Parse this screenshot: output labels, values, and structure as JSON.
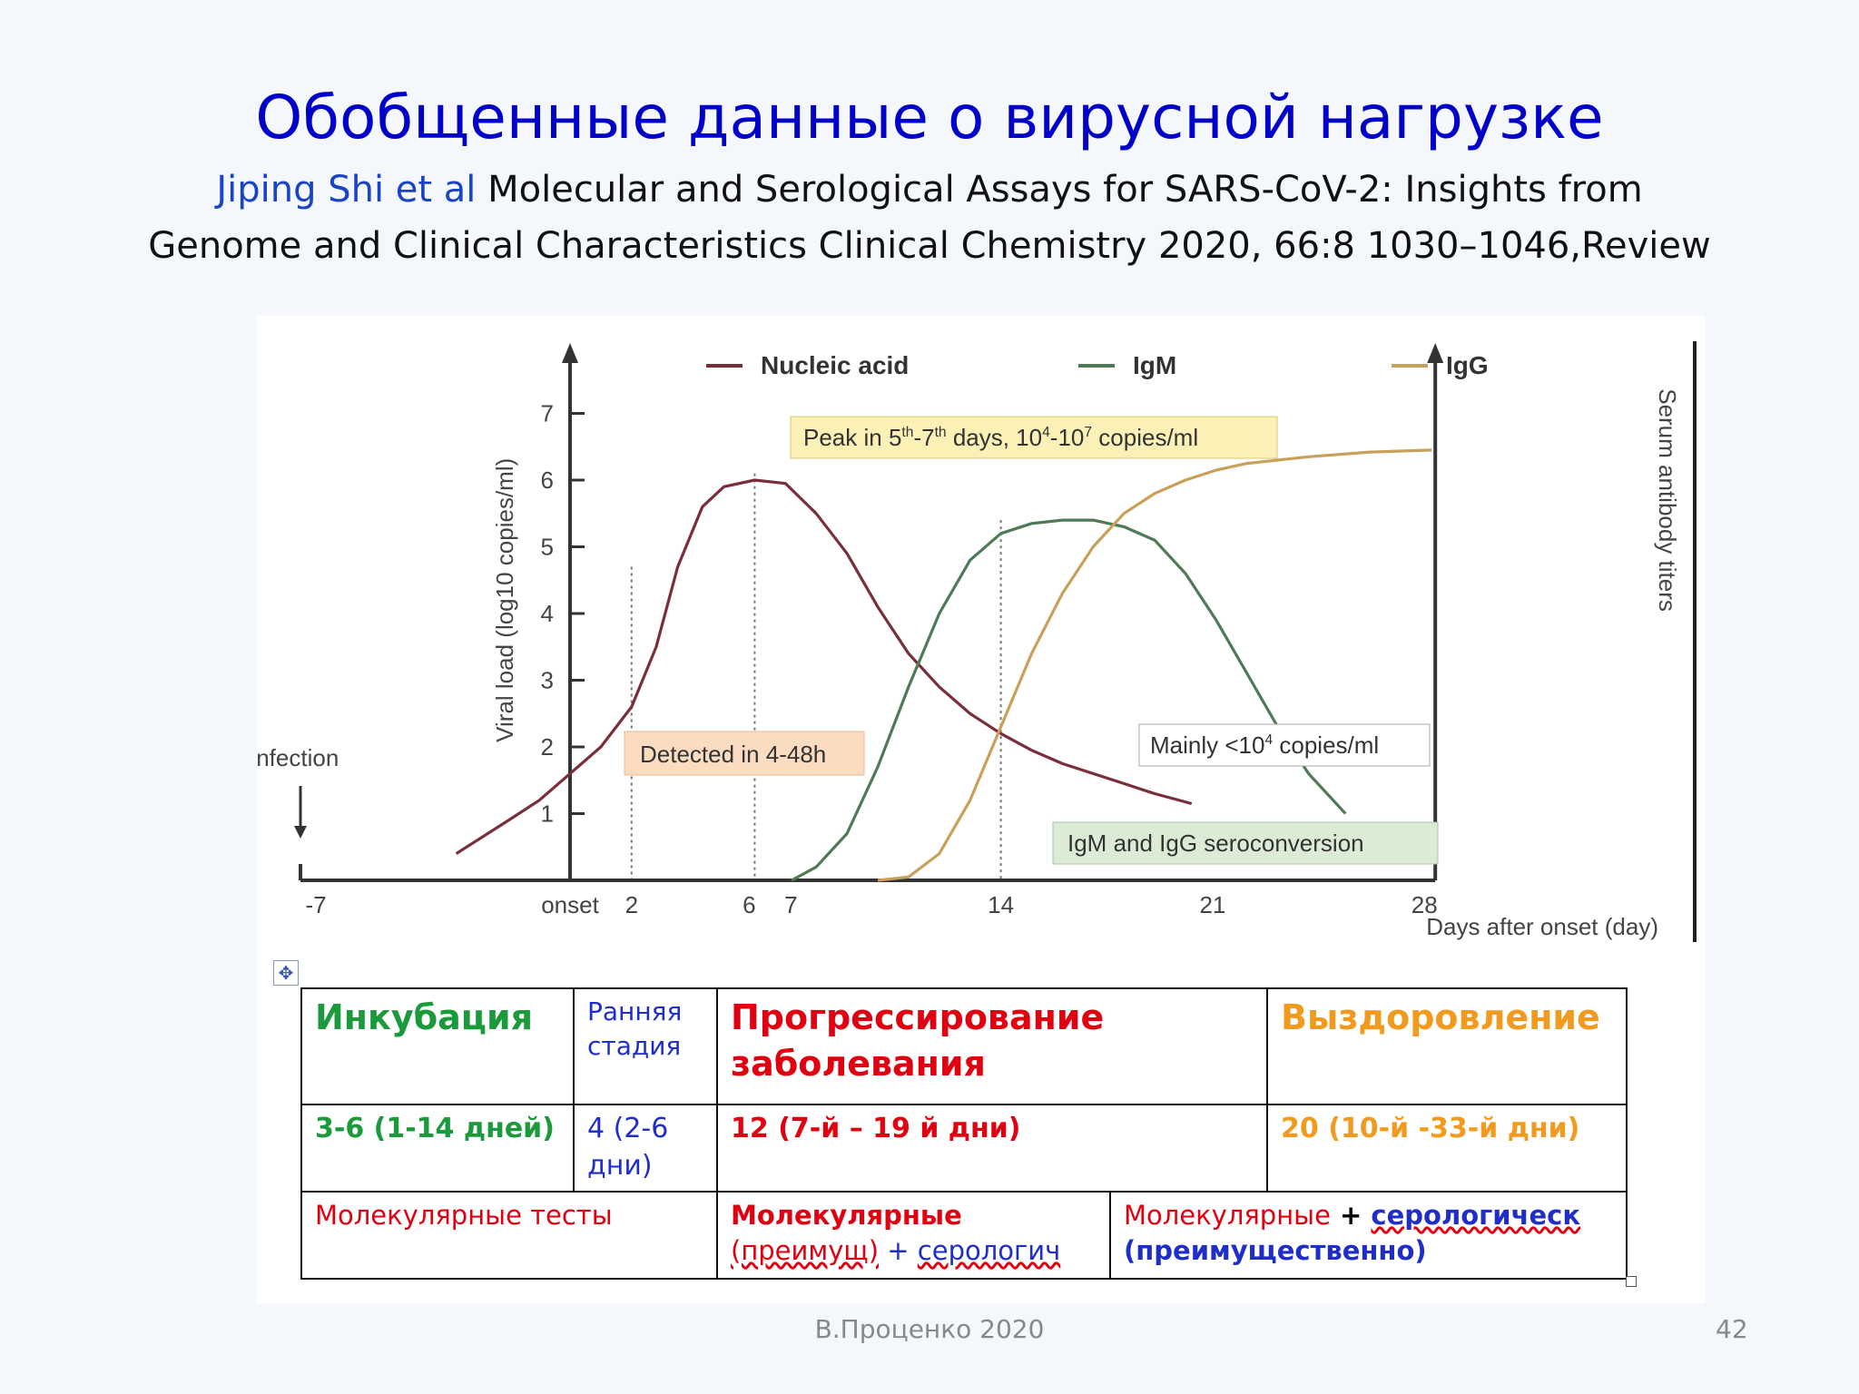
{
  "slide": {
    "title": "Обобщенные данные о вирусной нагрузке",
    "citation_author": "Jiping Shi et al",
    "citation_line1": "Molecular and Serological Assays for SARS-CoV-2: Insights from",
    "citation_line2": "Genome and Clinical Characteristics Clinical Chemistry 2020, 66:8 1030–1046,Review",
    "footer": "В.Проценко 2020",
    "page_number": "42"
  },
  "chart_data": {
    "type": "line",
    "ylabel": "Viral load (log10 copies/ml)",
    "y2label": "Serum antibody titers",
    "xlabel": "Days after onset (day)",
    "xlim": [
      -7,
      28
    ],
    "ylim": [
      0,
      7.5
    ],
    "x_tick_labels": [
      {
        "x": -7,
        "label": "-7"
      },
      {
        "x": 0,
        "label": "onset"
      },
      {
        "x": 2,
        "label": "2"
      },
      {
        "x": 6,
        "label": "6"
      },
      {
        "x": 7,
        "label": "7"
      },
      {
        "x": 14,
        "label": "14"
      },
      {
        "x": 21,
        "label": "21"
      },
      {
        "x": 28,
        "label": "28"
      }
    ],
    "y_ticks": [
      1,
      2,
      3,
      4,
      5,
      6,
      7
    ],
    "legend_position": "top",
    "series": [
      {
        "name": "Nucleic acid",
        "color": "#7a2e3a",
        "points": [
          [
            -3.7,
            0.4
          ],
          [
            -2,
            0.9
          ],
          [
            -1,
            1.2
          ],
          [
            0,
            1.6
          ],
          [
            1,
            2.0
          ],
          [
            2,
            2.6
          ],
          [
            2.8,
            3.5
          ],
          [
            3.5,
            4.7
          ],
          [
            4.3,
            5.6
          ],
          [
            5,
            5.9
          ],
          [
            6,
            6.0
          ],
          [
            7,
            5.95
          ],
          [
            8,
            5.5
          ],
          [
            9,
            4.9
          ],
          [
            10,
            4.1
          ],
          [
            11,
            3.4
          ],
          [
            12,
            2.9
          ],
          [
            13,
            2.5
          ],
          [
            14,
            2.2
          ],
          [
            15,
            1.95
          ],
          [
            16,
            1.75
          ],
          [
            17,
            1.6
          ],
          [
            18,
            1.45
          ],
          [
            19,
            1.3
          ],
          [
            20.2,
            1.15
          ]
        ]
      },
      {
        "name": "IgM",
        "color": "#4e7a55",
        "points": [
          [
            7.2,
            0
          ],
          [
            8,
            0.2
          ],
          [
            9,
            0.7
          ],
          [
            10,
            1.7
          ],
          [
            11,
            2.9
          ],
          [
            12,
            4.0
          ],
          [
            13,
            4.8
          ],
          [
            14,
            5.2
          ],
          [
            15,
            5.35
          ],
          [
            16,
            5.4
          ],
          [
            17,
            5.4
          ],
          [
            18,
            5.3
          ],
          [
            19,
            5.1
          ],
          [
            20,
            4.6
          ],
          [
            21,
            3.9
          ],
          [
            22,
            3.1
          ],
          [
            23,
            2.3
          ],
          [
            24,
            1.6
          ],
          [
            25.2,
            1.0
          ]
        ]
      },
      {
        "name": "IgG",
        "color": "#c9a05a",
        "points": [
          [
            10,
            0
          ],
          [
            11,
            0.05
          ],
          [
            12,
            0.4
          ],
          [
            13,
            1.2
          ],
          [
            14,
            2.3
          ],
          [
            15,
            3.4
          ],
          [
            16,
            4.3
          ],
          [
            17,
            5.0
          ],
          [
            18,
            5.5
          ],
          [
            19,
            5.8
          ],
          [
            20,
            6.0
          ],
          [
            21,
            6.15
          ],
          [
            22,
            6.25
          ],
          [
            24,
            6.35
          ],
          [
            26,
            6.42
          ],
          [
            28,
            6.45
          ]
        ]
      }
    ],
    "reference_lines": [
      {
        "x": 2
      },
      {
        "x": 6
      },
      {
        "x": 14
      }
    ],
    "annotations": [
      {
        "text": "Peak in 5th-7th days, 10^4-10^7 copies/ml",
        "style": "yellow"
      },
      {
        "text": "Detected in 4-48h",
        "style": "orange"
      },
      {
        "text": "Mainly <10^4 copies/ml",
        "style": "white"
      },
      {
        "text": "IgM and IgG seroconversion",
        "style": "green"
      },
      {
        "text": "Infection",
        "style": "arrow"
      }
    ]
  },
  "table": {
    "headers": {
      "incubation": "Инкубация",
      "early_line1": "Ранняя",
      "early_line2": "стадия",
      "progression_line1": "Прогрессирование",
      "progression_line2": "заболевания",
      "recovery": "Выздоровление"
    },
    "durations": {
      "incubation": "3-6 (1-14 дней)",
      "early_line1": "4 (2-6",
      "early_line2": "дни)",
      "progression": "12 (7-й – 19 й дни)",
      "recovery": "20 (10-й -33-й дни)"
    },
    "methods": {
      "incubation_early": "Молекулярные тесты",
      "progression_part1": "Молекулярные",
      "progression_part2": "(преимущ)",
      "progression_plus": " + ",
      "progression_part3": "серологич",
      "recovery_part1": "Молекулярные",
      "recovery_plus": " + ",
      "recovery_part2": "серологическ",
      "recovery_part3": "(преимущественно)"
    }
  }
}
